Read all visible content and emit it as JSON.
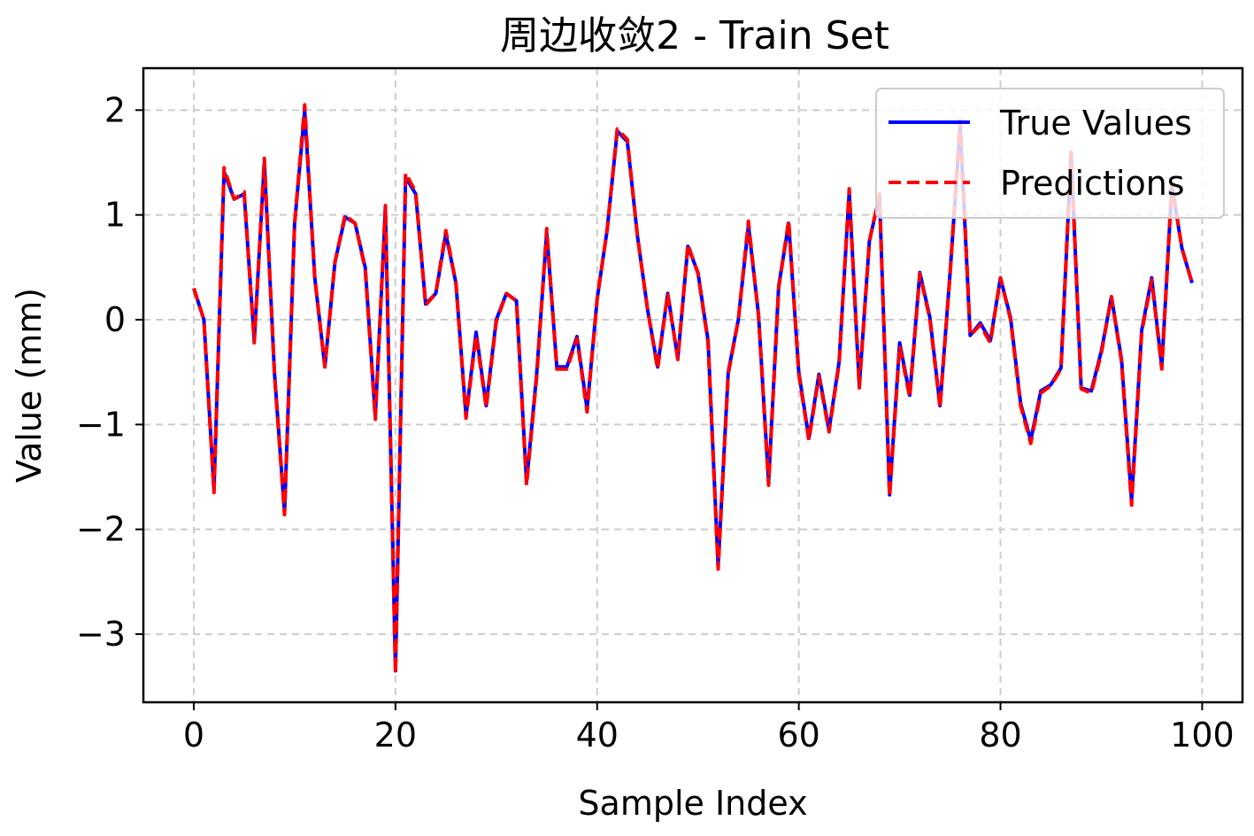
{
  "chart_data": {
    "type": "line",
    "title": "周边收敛2 - Train Set",
    "xlabel": "Sample Index",
    "ylabel": "Value (mm)",
    "xlim": [
      -5,
      104
    ],
    "ylim": [
      -3.65,
      2.4
    ],
    "x_ticks": [
      0,
      20,
      40,
      60,
      80,
      100
    ],
    "x_tick_labels": [
      "0",
      "20",
      "40",
      "60",
      "80",
      "100"
    ],
    "y_ticks": [
      2,
      1,
      0,
      -1,
      -2,
      -3
    ],
    "y_tick_labels": [
      "2",
      "1",
      "0",
      "−1",
      "−2",
      "−3"
    ],
    "grid": true,
    "legend_position": "top-right",
    "x": [
      0,
      1,
      2,
      3,
      4,
      5,
      6,
      7,
      8,
      9,
      10,
      11,
      12,
      13,
      14,
      15,
      16,
      17,
      18,
      19,
      20,
      21,
      22,
      23,
      24,
      25,
      26,
      27,
      28,
      29,
      30,
      31,
      32,
      33,
      34,
      35,
      36,
      37,
      38,
      39,
      40,
      41,
      42,
      43,
      44,
      45,
      46,
      47,
      48,
      49,
      50,
      51,
      52,
      53,
      54,
      55,
      56,
      57,
      58,
      59,
      60,
      61,
      62,
      63,
      64,
      65,
      66,
      67,
      68,
      69,
      70,
      71,
      72,
      73,
      74,
      75,
      76,
      77,
      78,
      79,
      80,
      81,
      82,
      83,
      84,
      85,
      86,
      87,
      88,
      89,
      90,
      91,
      92,
      93,
      94,
      95,
      96,
      97,
      98,
      99
    ],
    "series": [
      {
        "name": "True Values",
        "color": "#0000ff",
        "style": "solid",
        "values": [
          0.3,
          0.0,
          -1.62,
          1.41,
          1.15,
          1.2,
          -0.2,
          1.5,
          -0.5,
          -1.84,
          0.92,
          1.99,
          0.4,
          -0.45,
          0.55,
          0.98,
          0.92,
          0.5,
          -0.92,
          1.05,
          -3.35,
          1.36,
          1.2,
          0.15,
          0.25,
          0.82,
          0.35,
          -0.92,
          -0.12,
          -0.82,
          0.0,
          0.25,
          0.18,
          -1.55,
          -0.52,
          0.83,
          -0.45,
          -0.45,
          -0.16,
          -0.85,
          0.2,
          0.86,
          1.8,
          1.7,
          0.8,
          0.1,
          -0.45,
          0.25,
          -0.37,
          0.7,
          0.45,
          -0.2,
          -2.35,
          -0.5,
          0.0,
          0.9,
          0.05,
          -1.55,
          0.32,
          0.92,
          -0.5,
          -1.13,
          -0.52,
          -1.05,
          -0.4,
          1.22,
          -0.63,
          0.75,
          1.18,
          -1.67,
          -0.22,
          -0.72,
          0.45,
          0.02,
          -0.82,
          0.45,
          1.85,
          -0.15,
          -0.03,
          -0.2,
          0.4,
          0.02,
          -0.8,
          -1.15,
          -0.68,
          -0.62,
          -0.46,
          1.58,
          -0.65,
          -0.68,
          -0.3,
          0.22,
          -0.38,
          -1.73,
          -0.1,
          0.4,
          -0.45,
          1.28,
          0.68,
          0.35
        ]
      },
      {
        "name": "Predictions",
        "color": "#ff0000",
        "style": "dashed",
        "values": [
          0.3,
          0.0,
          -1.65,
          1.45,
          1.15,
          1.22,
          -0.22,
          1.54,
          -0.52,
          -1.86,
          0.92,
          2.05,
          0.4,
          -0.45,
          0.55,
          1.0,
          0.92,
          0.48,
          -0.95,
          1.09,
          -3.38,
          1.4,
          1.22,
          0.14,
          0.25,
          0.85,
          0.35,
          -0.94,
          -0.15,
          -0.84,
          -0.02,
          0.25,
          0.18,
          -1.58,
          -0.55,
          0.87,
          -0.47,
          -0.47,
          -0.18,
          -0.88,
          0.2,
          0.86,
          1.82,
          1.72,
          0.8,
          0.1,
          -0.47,
          0.25,
          -0.38,
          0.72,
          0.44,
          -0.22,
          -2.38,
          -0.52,
          0.0,
          0.94,
          0.04,
          -1.58,
          0.3,
          0.95,
          -0.52,
          -1.15,
          -0.54,
          -1.07,
          -0.42,
          1.25,
          -0.65,
          0.75,
          1.2,
          -1.69,
          -0.25,
          -0.74,
          0.44,
          0.0,
          -0.84,
          0.44,
          1.9,
          -0.15,
          -0.05,
          -0.22,
          0.4,
          0.0,
          -0.82,
          -1.18,
          -0.7,
          -0.63,
          -0.47,
          1.6,
          -0.66,
          -0.7,
          -0.32,
          0.22,
          -0.4,
          -1.77,
          -0.12,
          0.38,
          -0.47,
          1.3,
          0.68,
          0.35
        ]
      }
    ]
  }
}
